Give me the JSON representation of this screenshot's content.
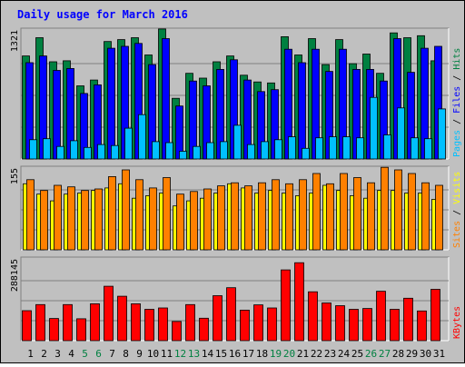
{
  "title": "Daily usage for March 2016",
  "colors": {
    "background": "#c0c0c0",
    "hits": "#008040",
    "files": "#0000ff",
    "pages": "#00c0ff",
    "visits": "#ffff00",
    "sites": "#ff8000",
    "kbytes": "#ff0000",
    "title": "#0000ff",
    "weekend_day": "#008040",
    "weekday": "#000000"
  },
  "chart_data": [
    {
      "type": "bar",
      "panel": "top",
      "y_max_label": "1321",
      "ylim": [
        0,
        1321
      ],
      "right_label": [
        "Pages",
        " / ",
        "Files",
        " / ",
        "Hits"
      ],
      "categories": [
        "1",
        "2",
        "3",
        "4",
        "5",
        "6",
        "7",
        "8",
        "9",
        "10",
        "11",
        "12",
        "13",
        "14",
        "15",
        "16",
        "17",
        "18",
        "19",
        "20",
        "21",
        "22",
        "23",
        "24",
        "25",
        "26",
        "27",
        "28",
        "29",
        "30",
        "31"
      ],
      "series": [
        {
          "name": "Hits",
          "values": [
            1070,
            1260,
            1010,
            1020,
            760,
            820,
            1220,
            1240,
            1260,
            1080,
            1350,
            630,
            890,
            840,
            1010,
            1070,
            870,
            800,
            790,
            1270,
            1080,
            1250,
            980,
            1240,
            990,
            1090,
            890,
            1310,
            1260,
            1280,
            1020
          ]
        },
        {
          "name": "Files",
          "values": [
            1000,
            1070,
            920,
            940,
            680,
            770,
            1150,
            1170,
            1200,
            980,
            1250,
            550,
            810,
            760,
            930,
            1030,
            820,
            700,
            720,
            1140,
            1000,
            1140,
            910,
            1140,
            930,
            930,
            810,
            1250,
            900,
            1150,
            1170
          ]
        },
        {
          "name": "Pages",
          "values": [
            200,
            210,
            130,
            190,
            120,
            150,
            140,
            320,
            460,
            180,
            170,
            80,
            130,
            170,
            180,
            350,
            150,
            180,
            200,
            230,
            110,
            220,
            230,
            230,
            220,
            640,
            250,
            530,
            220,
            210,
            520
          ]
        }
      ]
    },
    {
      "type": "bar",
      "panel": "middle",
      "y_max_label": "155",
      "ylim": [
        0,
        155
      ],
      "right_label": [
        "Sites",
        " / ",
        "Visits"
      ],
      "categories": [
        "1",
        "2",
        "3",
        "4",
        "5",
        "6",
        "7",
        "8",
        "9",
        "10",
        "11",
        "12",
        "13",
        "14",
        "15",
        "16",
        "17",
        "18",
        "19",
        "20",
        "21",
        "22",
        "23",
        "24",
        "25",
        "26",
        "27",
        "28",
        "29",
        "30",
        "31"
      ],
      "series": [
        {
          "name": "Visits",
          "values": [
            128,
            108,
            95,
            108,
            110,
            115,
            120,
            128,
            100,
            105,
            110,
            85,
            95,
            100,
            110,
            128,
            120,
            110,
            115,
            110,
            105,
            110,
            125,
            115,
            105,
            100,
            115,
            115,
            110,
            110,
            98
          ]
        },
        {
          "name": "Sites",
          "values": [
            136,
            115,
            125,
            122,
            115,
            118,
            142,
            155,
            136,
            120,
            140,
            108,
            113,
            118,
            124,
            130,
            124,
            130,
            136,
            128,
            136,
            148,
            128,
            148,
            140,
            130,
            160,
            155,
            148,
            130,
            125
          ]
        }
      ]
    },
    {
      "type": "bar",
      "panel": "bottom",
      "y_max_label": "288145",
      "ylim": [
        0,
        288145
      ],
      "right_label": [
        "KBytes"
      ],
      "categories": [
        "1",
        "2",
        "3",
        "4",
        "5",
        "6",
        "7",
        "8",
        "9",
        "10",
        "11",
        "12",
        "13",
        "14",
        "15",
        "16",
        "17",
        "18",
        "19",
        "20",
        "21",
        "22",
        "23",
        "24",
        "25",
        "26",
        "27",
        "28",
        "29",
        "30",
        "31"
      ],
      "series": [
        {
          "name": "KBytes",
          "values": [
            108000,
            130000,
            80000,
            130000,
            79000,
            133000,
            196000,
            160000,
            133000,
            113000,
            118000,
            69000,
            130000,
            81000,
            162000,
            191000,
            110000,
            129000,
            118000,
            255000,
            281000,
            176000,
            136000,
            126000,
            113000,
            116000,
            178000,
            113000,
            153000,
            107000,
            185000
          ]
        }
      ]
    }
  ]
}
